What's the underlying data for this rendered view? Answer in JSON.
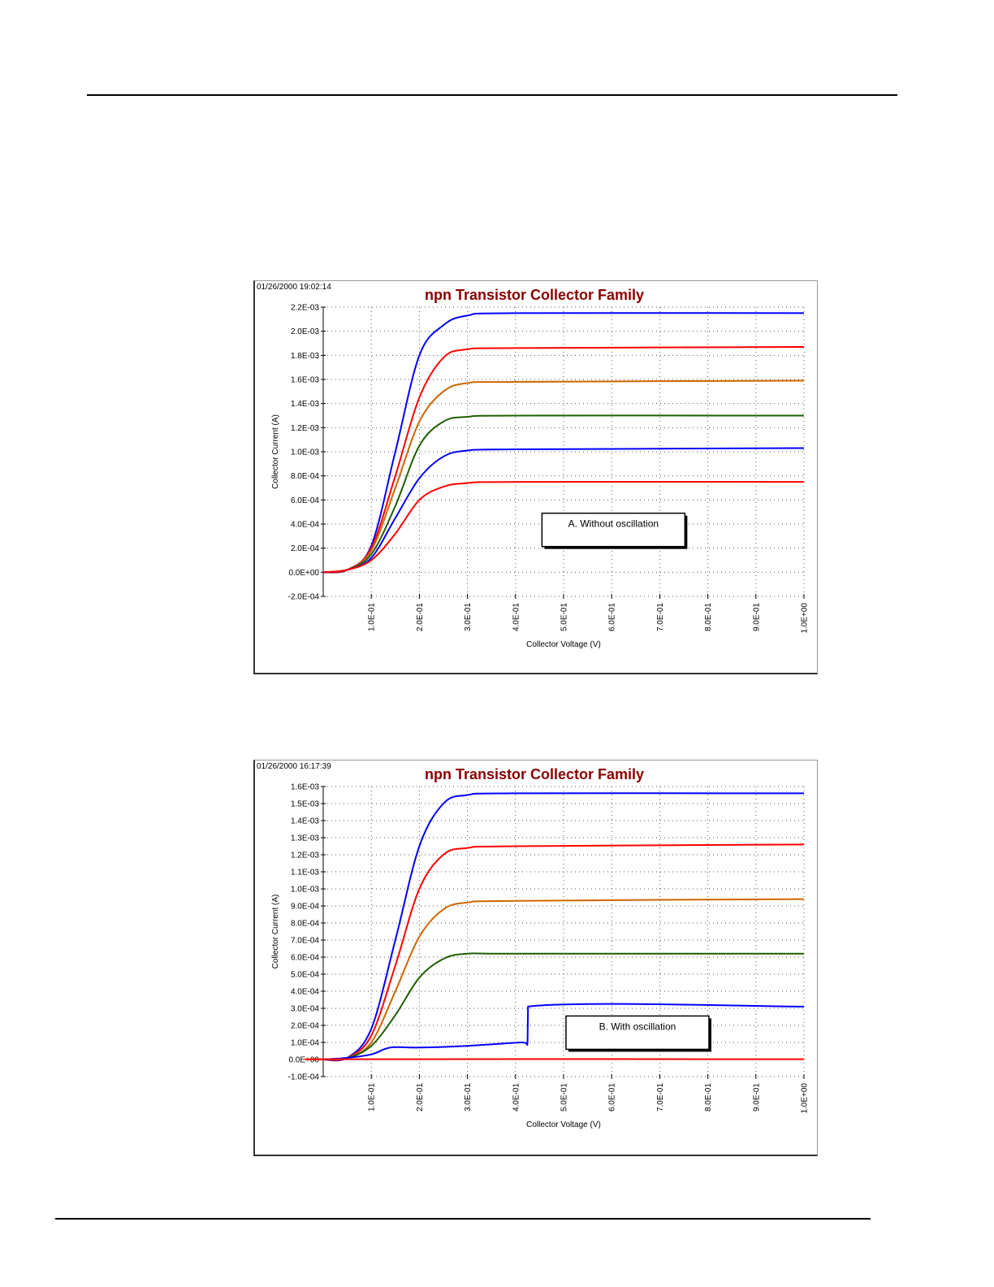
{
  "page": {
    "rules": [
      "top-rule",
      "bottom-rule"
    ]
  },
  "chart_data": [
    {
      "type": "line",
      "timestamp": "01/26/2000 19:02:14",
      "title": "npn Transistor Collector Family",
      "xlabel": "Collector Voltage (V)",
      "ylabel": "Collector Current (A)",
      "xlim": [
        0,
        1.0
      ],
      "ylim": [
        -0.0002,
        0.0022
      ],
      "grid": true,
      "xticks": [
        {
          "v": 0.1,
          "label": "1.0E-01"
        },
        {
          "v": 0.2,
          "label": "2.0E-01"
        },
        {
          "v": 0.3,
          "label": "3.0E-01"
        },
        {
          "v": 0.4,
          "label": "4.0E-01"
        },
        {
          "v": 0.5,
          "label": "5.0E-01"
        },
        {
          "v": 0.6,
          "label": "6.0E-01"
        },
        {
          "v": 0.7,
          "label": "7.0E-01"
        },
        {
          "v": 0.8,
          "label": "8.0E-01"
        },
        {
          "v": 0.9,
          "label": "9.0E-01"
        },
        {
          "v": 1.0,
          "label": "1.0E+00"
        }
      ],
      "yticks": [
        {
          "v": 0.0022,
          "label": "2.2E-03"
        },
        {
          "v": 0.002,
          "label": "2.0E-03"
        },
        {
          "v": 0.0018,
          "label": "1.8E-03"
        },
        {
          "v": 0.0016,
          "label": "1.6E-03"
        },
        {
          "v": 0.0014,
          "label": "1.4E-03"
        },
        {
          "v": 0.0012,
          "label": "1.2E-03"
        },
        {
          "v": 0.001,
          "label": "1.0E-03"
        },
        {
          "v": 0.0008,
          "label": "8.0E-04"
        },
        {
          "v": 0.0006,
          "label": "6.0E-04"
        },
        {
          "v": 0.0004,
          "label": "4.0E-04"
        },
        {
          "v": 0.0002,
          "label": "2.0E-04"
        },
        {
          "v": 0.0,
          "label": "0.0E+00"
        },
        {
          "v": -0.0002,
          "label": "-2.0E-04"
        }
      ],
      "annotation": {
        "text": "A. Without oscillation",
        "x": 0.455,
        "y": 0.00049
      },
      "series": [
        {
          "color": "#0000ff",
          "x": [
            0,
            0.05,
            0.1,
            0.15,
            0.2,
            0.25,
            0.3,
            0.4,
            1.0
          ],
          "y": [
            0,
            2e-05,
            0.00022,
            0.001,
            0.0018,
            0.00205,
            0.00213,
            0.00215,
            0.00215
          ]
        },
        {
          "color": "#ff0000",
          "x": [
            0,
            0.05,
            0.1,
            0.15,
            0.2,
            0.25,
            0.3,
            0.4,
            1.0
          ],
          "y": [
            0,
            2e-05,
            0.0002,
            0.0008,
            0.00145,
            0.00178,
            0.00185,
            0.00186,
            0.00187
          ]
        },
        {
          "color": "#cc6600",
          "x": [
            0,
            0.05,
            0.1,
            0.15,
            0.2,
            0.25,
            0.3,
            0.4,
            1.0
          ],
          "y": [
            0,
            2e-05,
            0.00018,
            0.0007,
            0.00125,
            0.0015,
            0.00157,
            0.00158,
            0.00159
          ]
        },
        {
          "color": "#1f5f00",
          "x": [
            0,
            0.05,
            0.1,
            0.15,
            0.2,
            0.25,
            0.3,
            0.4,
            1.0
          ],
          "y": [
            0,
            2e-05,
            0.00015,
            0.00055,
            0.00105,
            0.00125,
            0.00129,
            0.0013,
            0.0013
          ]
        },
        {
          "color": "#0000ff",
          "x": [
            0,
            0.05,
            0.1,
            0.15,
            0.2,
            0.25,
            0.3,
            0.4,
            1.0
          ],
          "y": [
            0,
            2e-05,
            0.00012,
            0.00045,
            0.00078,
            0.00096,
            0.00101,
            0.00102,
            0.00103
          ]
        },
        {
          "color": "#ff0000",
          "x": [
            0,
            0.05,
            0.1,
            0.15,
            0.2,
            0.25,
            0.3,
            0.4,
            1.0
          ],
          "y": [
            0,
            2e-05,
            0.0001,
            0.00032,
            0.0006,
            0.00071,
            0.00074,
            0.00075,
            0.00075
          ]
        }
      ]
    },
    {
      "type": "line",
      "timestamp": "01/26/2000 16:17:39",
      "title": "npn Transistor Collector Family",
      "xlabel": "Collector Voltage (V)",
      "ylabel": "Collector Current (A)",
      "xlim": [
        0,
        1.0
      ],
      "ylim": [
        -0.0001,
        0.0016
      ],
      "grid": true,
      "xticks": [
        {
          "v": 0.1,
          "label": "1.0E-01"
        },
        {
          "v": 0.2,
          "label": "2.0E-01"
        },
        {
          "v": 0.3,
          "label": "3.0E-01"
        },
        {
          "v": 0.4,
          "label": "4.0E-01"
        },
        {
          "v": 0.5,
          "label": "5.0E-01"
        },
        {
          "v": 0.6,
          "label": "6.0E-01"
        },
        {
          "v": 0.7,
          "label": "7.0E-01"
        },
        {
          "v": 0.8,
          "label": "8.0E-01"
        },
        {
          "v": 0.9,
          "label": "9.0E-01"
        },
        {
          "v": 1.0,
          "label": "1.0E+00"
        }
      ],
      "yticks": [
        {
          "v": 0.0016,
          "label": "1.6E-03"
        },
        {
          "v": 0.0015,
          "label": "1.5E-03"
        },
        {
          "v": 0.0014,
          "label": "1.4E-03"
        },
        {
          "v": 0.0013,
          "label": "1.3E-03"
        },
        {
          "v": 0.0012,
          "label": "1.2E-03"
        },
        {
          "v": 0.0011,
          "label": "1.1E-03"
        },
        {
          "v": 0.001,
          "label": "1.0E-03"
        },
        {
          "v": 0.0009,
          "label": "9.0E-04"
        },
        {
          "v": 0.0008,
          "label": "8.0E-04"
        },
        {
          "v": 0.0007,
          "label": "7.0E-04"
        },
        {
          "v": 0.0006,
          "label": "6.0E-04"
        },
        {
          "v": 0.0005,
          "label": "5.0E-04"
        },
        {
          "v": 0.0004,
          "label": "4.0E-04"
        },
        {
          "v": 0.0003,
          "label": "3.0E-04"
        },
        {
          "v": 0.0002,
          "label": "2.0E-04"
        },
        {
          "v": 0.0001,
          "label": "1.0E-04"
        },
        {
          "v": 0.0,
          "label": "0.0E+00"
        },
        {
          "v": -0.0001,
          "label": "-1.0E-04"
        }
      ],
      "annotation": {
        "text": "B. With oscillation",
        "x": 0.505,
        "y": 0.000255
      },
      "series": [
        {
          "color": "#0000ff",
          "x": [
            0,
            0.05,
            0.1,
            0.15,
            0.2,
            0.25,
            0.3,
            0.4,
            1.0
          ],
          "y": [
            0,
            1e-05,
            0.00018,
            0.0007,
            0.00125,
            0.0015,
            0.00155,
            0.00156,
            0.00156
          ]
        },
        {
          "color": "#ff0000",
          "x": [
            0,
            0.05,
            0.1,
            0.15,
            0.2,
            0.25,
            0.3,
            0.4,
            1.0
          ],
          "y": [
            0,
            1e-05,
            0.00014,
            0.00055,
            0.001,
            0.0012,
            0.00124,
            0.00125,
            0.00126
          ]
        },
        {
          "color": "#cc6600",
          "x": [
            0,
            0.05,
            0.1,
            0.15,
            0.2,
            0.25,
            0.3,
            0.4,
            1.0
          ],
          "y": [
            0,
            1e-05,
            0.0001,
            0.0004,
            0.00072,
            0.00088,
            0.00092,
            0.00093,
            0.00094
          ]
        },
        {
          "color": "#1f5f00",
          "x": [
            0,
            0.05,
            0.1,
            0.15,
            0.2,
            0.25,
            0.3,
            0.4,
            1.0
          ],
          "y": [
            0,
            1e-05,
            8e-05,
            0.00026,
            0.00048,
            0.00059,
            0.00062,
            0.00062,
            0.00062
          ]
        },
        {
          "color": "#0000ff",
          "x": [
            0,
            0.05,
            0.1,
            0.14,
            0.2,
            0.3,
            0.41,
            0.425,
            0.426,
            1.0
          ],
          "y": [
            0,
            1e-05,
            3e-05,
            7e-05,
            7e-05,
            8e-05,
            0.0001,
            0.0001,
            0.00031,
            0.00031
          ]
        },
        {
          "color": "#ff0000",
          "x": [
            0,
            0.05,
            1.0
          ],
          "y": [
            0,
            2e-06,
            2e-06
          ]
        }
      ]
    }
  ]
}
